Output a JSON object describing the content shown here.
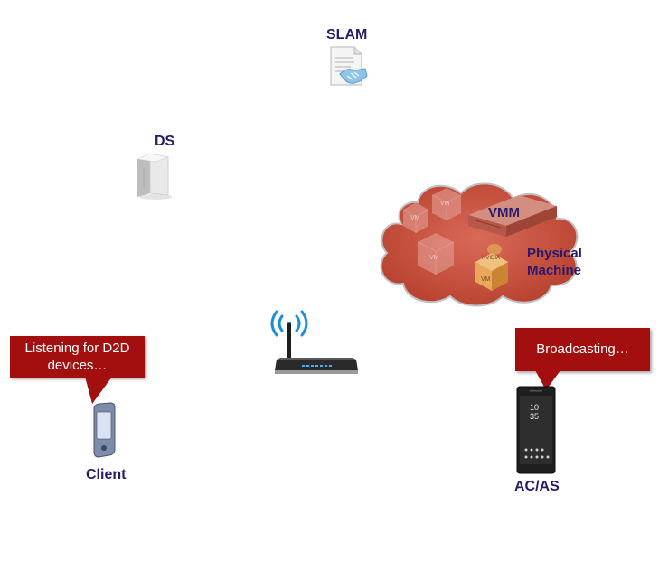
{
  "nodes": {
    "slam": "SLAM",
    "ds": "DS",
    "vmm": "VMM",
    "physical_machine": [
      "Physical",
      "Machine"
    ],
    "client": "Client",
    "acas": "AC/AS"
  },
  "vm_label": "VM",
  "gpu_brand": "NVIDIA",
  "callouts": {
    "client": [
      "Listening for D2D",
      "devices…"
    ],
    "acas": "Broadcasting…"
  },
  "phone_screen": {
    "time_top": "10",
    "time_bottom": "35"
  },
  "colors": {
    "label_text": "#2a1a6b",
    "callout_bg": "#a30e0e",
    "cloud_fill": "#c7503f",
    "wifi_blue": "#1a8fd8"
  },
  "icons": [
    "document-handshake-icon",
    "server-tower-icon",
    "cloud-icon",
    "router-icon",
    "pda-icon",
    "smartphone-icon"
  ]
}
